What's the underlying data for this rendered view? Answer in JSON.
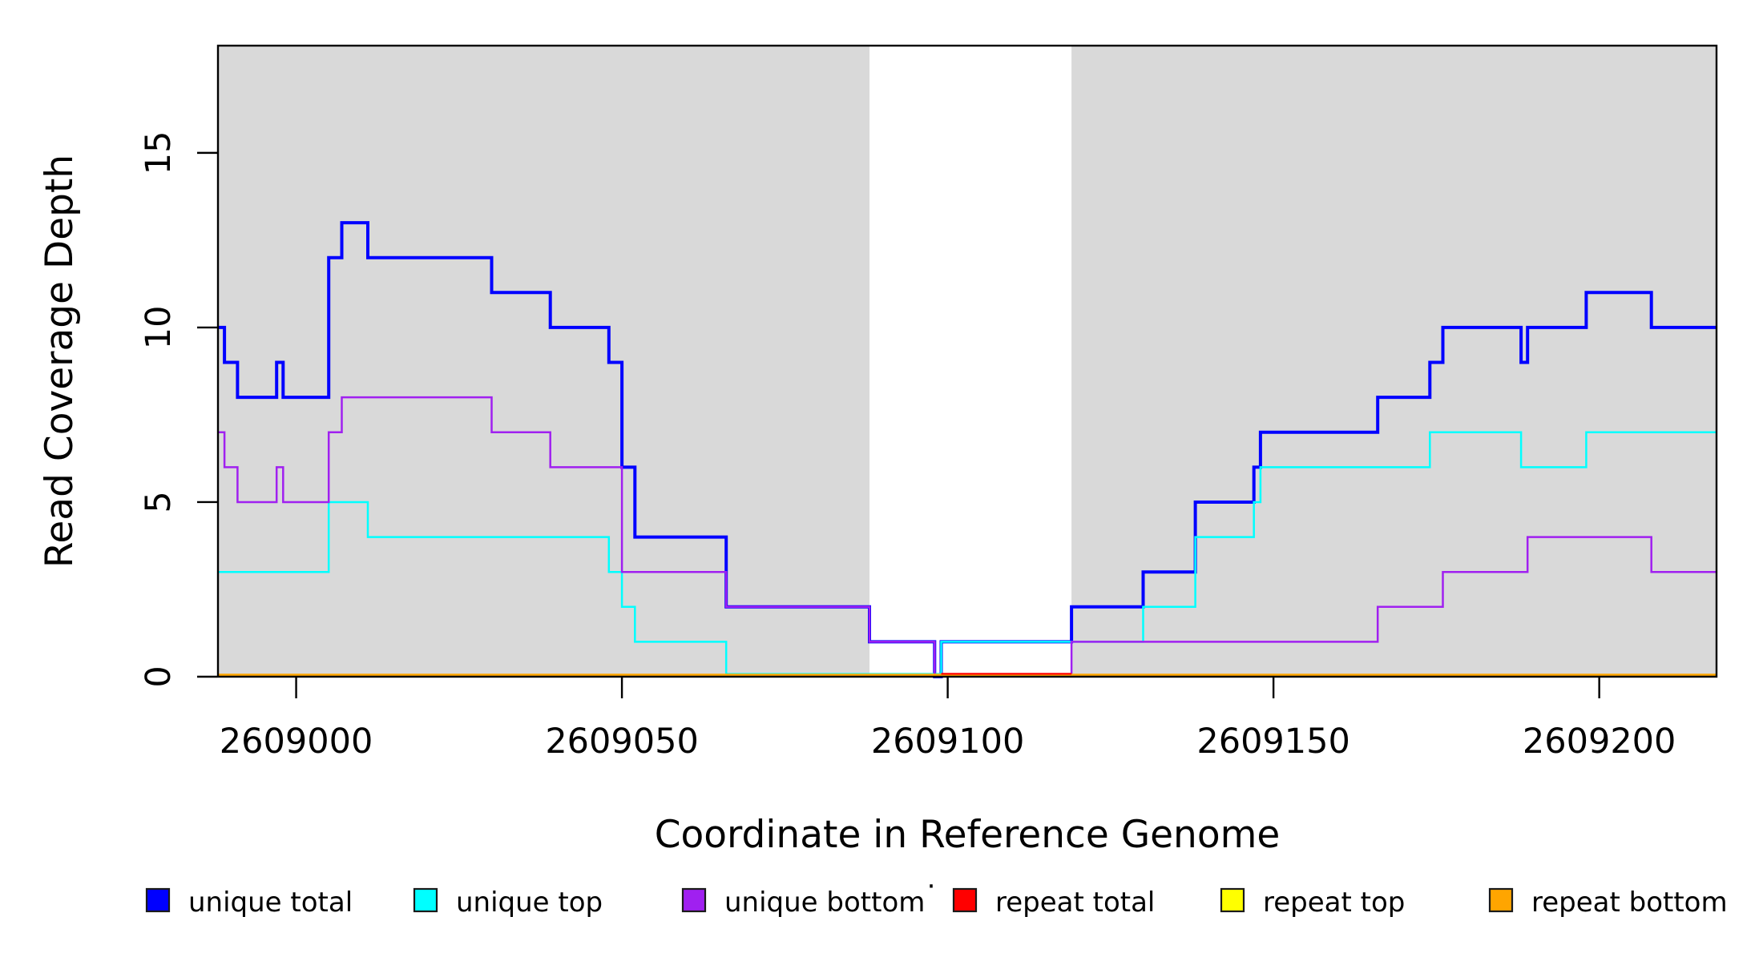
{
  "chart_data": {
    "type": "line",
    "line_style": "step",
    "title": "",
    "xlabel": "Coordinate in Reference Genome",
    "ylabel": "Read Coverage Depth",
    "xlim": [
      2608988,
      2609218
    ],
    "ylim": [
      0,
      18.07
    ],
    "grid": false,
    "legend_position": "bottom",
    "plot_background": "#ffffff",
    "shaded_regions": {
      "color": "#d9d9d9",
      "ranges": [
        [
          2608988,
          2609088
        ],
        [
          2609119,
          2609218
        ]
      ]
    },
    "x_axis": {
      "tick_values": [
        2609000,
        2609050,
        2609100,
        2609150,
        2609200
      ],
      "tick_labels": [
        "2609000",
        "2609050",
        "2609100",
        "2609150",
        "2609200"
      ]
    },
    "y_axis": {
      "tick_values": [
        0,
        5,
        10,
        15
      ],
      "tick_labels": [
        "0",
        "5",
        "10",
        "15"
      ]
    },
    "series": [
      {
        "name": "unique total",
        "color": "#0000ff",
        "line_width": 4,
        "x_end": 2609218,
        "steps": [
          [
            2608988,
            10
          ],
          [
            2608989,
            9
          ],
          [
            2608991,
            8
          ],
          [
            2608997,
            9
          ],
          [
            2608998,
            8
          ],
          [
            2609005,
            12
          ],
          [
            2609007,
            13
          ],
          [
            2609011,
            12
          ],
          [
            2609030,
            11
          ],
          [
            2609039,
            10
          ],
          [
            2609048,
            9
          ],
          [
            2609050,
            6
          ],
          [
            2609052,
            4
          ],
          [
            2609066,
            2
          ],
          [
            2609088,
            1
          ],
          [
            2609098,
            0
          ],
          [
            2609099,
            1
          ],
          [
            2609119,
            2
          ],
          [
            2609130,
            3
          ],
          [
            2609138,
            5
          ],
          [
            2609147,
            6
          ],
          [
            2609148,
            7
          ],
          [
            2609166,
            8
          ],
          [
            2609174,
            9
          ],
          [
            2609176,
            10
          ],
          [
            2609188,
            9
          ],
          [
            2609189,
            10
          ],
          [
            2609198,
            11
          ],
          [
            2609208,
            10
          ]
        ]
      },
      {
        "name": "unique top",
        "color": "#00ffff",
        "line_width": 2.5,
        "x_end": 2609218,
        "steps": [
          [
            2608988,
            3
          ],
          [
            2609005,
            5
          ],
          [
            2609011,
            4
          ],
          [
            2609048,
            3
          ],
          [
            2609050,
            2
          ],
          [
            2609052,
            1
          ],
          [
            2609066,
            0
          ],
          [
            2609099,
            1
          ],
          [
            2609130,
            2
          ],
          [
            2609138,
            4
          ],
          [
            2609147,
            5
          ],
          [
            2609148,
            6
          ],
          [
            2609174,
            7
          ],
          [
            2609188,
            6
          ],
          [
            2609198,
            7
          ]
        ]
      },
      {
        "name": "unique bottom",
        "color": "#a020f0",
        "line_width": 2.5,
        "x_end": 2609218,
        "steps": [
          [
            2608988,
            7
          ],
          [
            2608989,
            6
          ],
          [
            2608991,
            5
          ],
          [
            2608997,
            6
          ],
          [
            2608998,
            5
          ],
          [
            2609005,
            7
          ],
          [
            2609007,
            8
          ],
          [
            2609030,
            7
          ],
          [
            2609039,
            6
          ],
          [
            2609050,
            3
          ],
          [
            2609066,
            2
          ],
          [
            2609088,
            1
          ],
          [
            2609098,
            0
          ],
          [
            2609119,
            1
          ],
          [
            2609166,
            2
          ],
          [
            2609176,
            3
          ],
          [
            2609189,
            4
          ],
          [
            2609208,
            3
          ]
        ]
      },
      {
        "name": "repeat total",
        "color": "#ff0000",
        "line_width": 2.5,
        "x_end": 2609218,
        "steps": [
          [
            2608988,
            0
          ]
        ]
      },
      {
        "name": "repeat top",
        "color": "#ffff00",
        "line_width": 2.5,
        "x_end": 2609218,
        "steps": [
          [
            2608988,
            0
          ]
        ]
      },
      {
        "name": "repeat bottom",
        "color": "#ffa500",
        "line_width": 4,
        "x_end": 2609218,
        "steps": [
          [
            2608988,
            0
          ]
        ]
      }
    ]
  },
  "legend": {
    "items": [
      {
        "label": "unique total",
        "color": "#0000ff"
      },
      {
        "label": "unique top",
        "color": "#00ffff"
      },
      {
        "label": "unique bottom",
        "color": "#a020f0"
      },
      {
        "label": "repeat total",
        "color": "#ff0000"
      },
      {
        "label": "repeat top",
        "color": "#ffff00"
      },
      {
        "label": "repeat bottom",
        "color": "#ffa500"
      }
    ],
    "stray_dot": "·"
  }
}
